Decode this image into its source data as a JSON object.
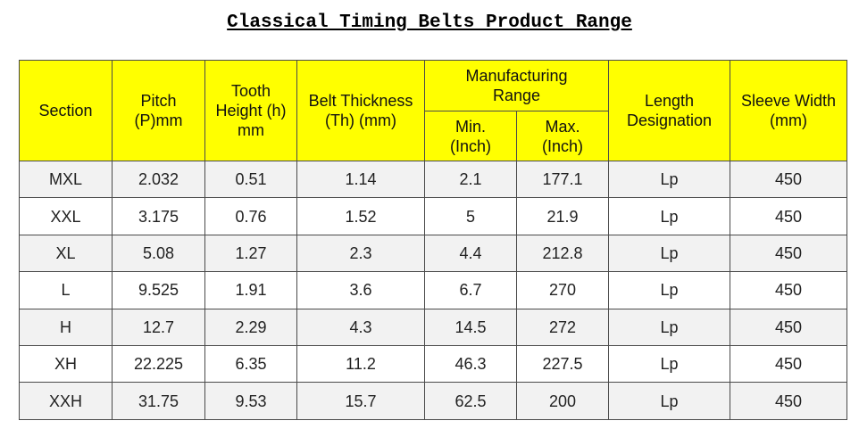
{
  "title": "Classical Timing Belts Product Range",
  "table": {
    "header": {
      "section": "Section",
      "pitch": "Pitch (P)mm",
      "tooth_height": "Tooth Height (h) mm",
      "belt_thickness": "Belt Thickness (Th) (mm)",
      "manufacturing_range": "Manufacturing Range",
      "min": "Min. (Inch)",
      "max": "Max. (Inch)",
      "length_designation": "Length Designation",
      "sleeve_width": "Sleeve Width (mm)"
    },
    "rows": [
      [
        "MXL",
        "2.032",
        "0.51",
        "1.14",
        "2.1",
        "177.1",
        "Lp",
        "450"
      ],
      [
        "XXL",
        "3.175",
        "0.76",
        "1.52",
        "5",
        "21.9",
        "Lp",
        "450"
      ],
      [
        "XL",
        "5.08",
        "1.27",
        "2.3",
        "4.4",
        "212.8",
        "Lp",
        "450"
      ],
      [
        "L",
        "9.525",
        "1.91",
        "3.6",
        "6.7",
        "270",
        "Lp",
        "450"
      ],
      [
        "H",
        "12.7",
        "2.29",
        "4.3",
        "14.5",
        "272",
        "Lp",
        "450"
      ],
      [
        "XH",
        "22.225",
        "6.35",
        "11.2",
        "46.3",
        "227.5",
        "Lp",
        "450"
      ],
      [
        "XXH",
        "31.75",
        "9.53",
        "15.7",
        "62.5",
        "200",
        "Lp",
        "450"
      ]
    ]
  }
}
